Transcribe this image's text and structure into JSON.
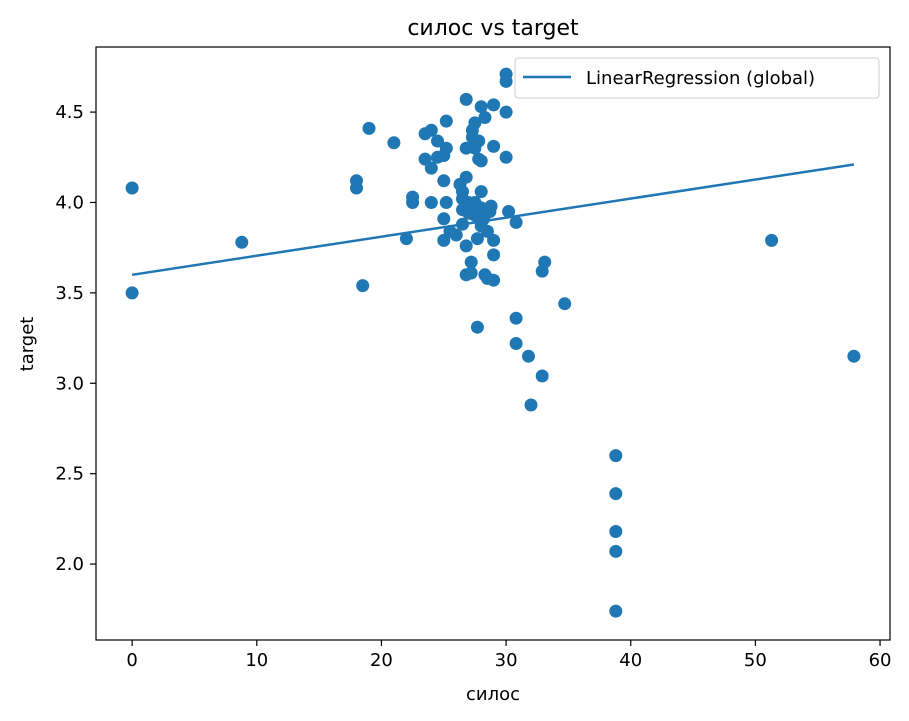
{
  "chart_data": {
    "type": "scatter",
    "title": "силос vs target",
    "xlabel": "силос",
    "ylabel": "target",
    "xlim": [
      -2.9,
      60.8
    ],
    "ylim": [
      1.58,
      4.86
    ],
    "xticks": [
      0,
      10,
      20,
      30,
      40,
      50,
      60
    ],
    "yticks": [
      2.0,
      2.5,
      3.0,
      3.5,
      4.0,
      4.5
    ],
    "xtick_labels": [
      "0",
      "10",
      "20",
      "30",
      "40",
      "50",
      "60"
    ],
    "ytick_labels": [
      "2.0",
      "2.5",
      "3.0",
      "3.5",
      "4.0",
      "4.5"
    ],
    "grid": false,
    "legend": {
      "placement": "top-right",
      "entries": [
        "LinearRegression (global)"
      ]
    },
    "colors": {
      "series": "#1f77b4"
    },
    "series": [
      {
        "type": "scatter",
        "points": [
          [
            0.0,
            4.08
          ],
          [
            0.0,
            3.5
          ],
          [
            8.8,
            3.78
          ],
          [
            18.0,
            4.12
          ],
          [
            18.0,
            4.08
          ],
          [
            18.5,
            3.54
          ],
          [
            19.0,
            4.41
          ],
          [
            21.0,
            4.33
          ],
          [
            22.0,
            3.8
          ],
          [
            22.5,
            4.03
          ],
          [
            22.5,
            4.0
          ],
          [
            23.5,
            4.38
          ],
          [
            23.5,
            4.24
          ],
          [
            24.0,
            4.4
          ],
          [
            24.0,
            4.19
          ],
          [
            24.0,
            4.0
          ],
          [
            24.5,
            4.25
          ],
          [
            24.5,
            4.34
          ],
          [
            25.0,
            4.12
          ],
          [
            25.0,
            4.26
          ],
          [
            25.0,
            3.91
          ],
          [
            25.0,
            3.79
          ],
          [
            25.2,
            4.45
          ],
          [
            25.2,
            4.3
          ],
          [
            25.2,
            4.0
          ],
          [
            25.5,
            3.84
          ],
          [
            26.0,
            3.82
          ],
          [
            26.3,
            4.1
          ],
          [
            26.5,
            4.06
          ],
          [
            26.5,
            4.02
          ],
          [
            26.5,
            3.96
          ],
          [
            26.5,
            3.88
          ],
          [
            26.8,
            4.57
          ],
          [
            26.8,
            4.3
          ],
          [
            26.8,
            4.14
          ],
          [
            26.8,
            3.76
          ],
          [
            26.8,
            3.6
          ],
          [
            27.0,
            4.0
          ],
          [
            27.0,
            3.94
          ],
          [
            27.2,
            3.67
          ],
          [
            27.2,
            3.61
          ],
          [
            27.3,
            4.4
          ],
          [
            27.3,
            4.36
          ],
          [
            27.5,
            4.44
          ],
          [
            27.5,
            4.3
          ],
          [
            27.5,
            4.0
          ],
          [
            27.5,
            3.93
          ],
          [
            27.7,
            3.8
          ],
          [
            27.7,
            3.31
          ],
          [
            27.8,
            4.24
          ],
          [
            27.8,
            4.34
          ],
          [
            28.0,
            4.53
          ],
          [
            28.0,
            4.23
          ],
          [
            28.0,
            4.06
          ],
          [
            28.0,
            3.97
          ],
          [
            28.0,
            3.87
          ],
          [
            28.2,
            3.91
          ],
          [
            28.3,
            4.47
          ],
          [
            28.3,
            3.6
          ],
          [
            28.5,
            3.58
          ],
          [
            28.5,
            3.84
          ],
          [
            28.7,
            3.95
          ],
          [
            28.8,
            3.98
          ],
          [
            29.0,
            4.54
          ],
          [
            29.0,
            4.31
          ],
          [
            29.0,
            3.79
          ],
          [
            29.0,
            3.71
          ],
          [
            29.0,
            3.57
          ],
          [
            30.0,
            4.71
          ],
          [
            30.0,
            4.67
          ],
          [
            30.0,
            4.5
          ],
          [
            30.0,
            4.25
          ],
          [
            30.2,
            3.95
          ],
          [
            30.8,
            3.89
          ],
          [
            30.8,
            3.36
          ],
          [
            30.8,
            3.22
          ],
          [
            31.8,
            3.15
          ],
          [
            32.0,
            2.88
          ],
          [
            32.9,
            3.62
          ],
          [
            32.9,
            3.04
          ],
          [
            33.1,
            3.67
          ],
          [
            34.7,
            3.44
          ],
          [
            38.8,
            2.6
          ],
          [
            38.8,
            2.39
          ],
          [
            38.8,
            2.18
          ],
          [
            38.8,
            2.07
          ],
          [
            38.8,
            1.74
          ],
          [
            51.3,
            3.79
          ],
          [
            57.9,
            3.15
          ]
        ]
      },
      {
        "name": "LinearRegression (global)",
        "type": "line",
        "x": [
          0.0,
          57.9
        ],
        "y": [
          3.6,
          4.21
        ]
      }
    ]
  }
}
